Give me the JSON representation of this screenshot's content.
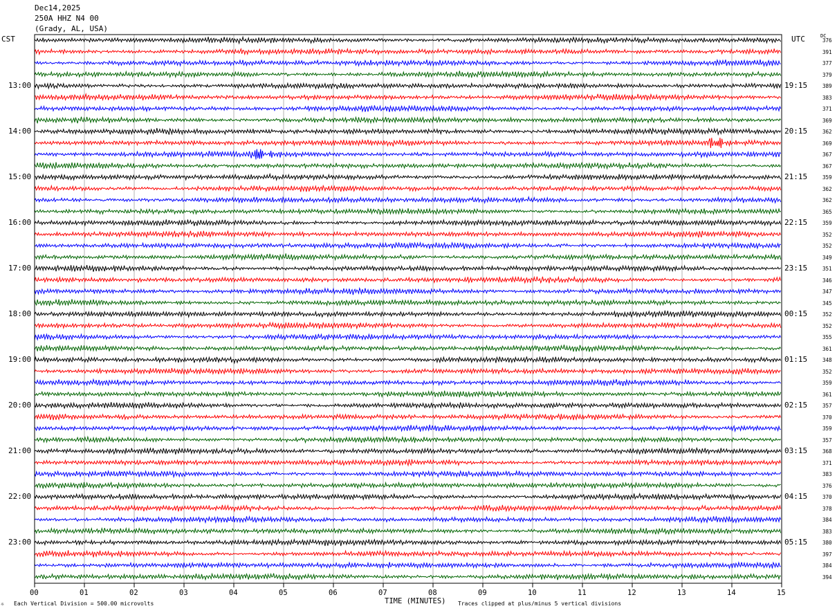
{
  "header": {
    "date": "Dec14,2025",
    "station": "250A HHZ N4 00",
    "location": "(Grady, AL, USA)"
  },
  "left_label": "CST",
  "right_label": "UTC",
  "dc_label": "DC",
  "footer": {
    "scale_note": "Each Vertical Division =  500.00 microvolts",
    "clip_note": "Traces clipped at plus/minus 5 vertical divisions",
    "corner_mark": "☼"
  },
  "chart_data": {
    "type": "line",
    "xlabel": "TIME (MINUTES)",
    "x_ticks": [
      "00",
      "01",
      "02",
      "03",
      "04",
      "05",
      "06",
      "07",
      "08",
      "09",
      "10",
      "11",
      "12",
      "13",
      "14",
      "15"
    ],
    "xlim": [
      0,
      15
    ],
    "traces_per_hour": 4,
    "cst_hours": [
      "13:00",
      "14:00",
      "15:00",
      "16:00",
      "17:00",
      "18:00",
      "19:00",
      "20:00",
      "21:00",
      "22:00",
      "23:00"
    ],
    "utc_hours": [
      "19:15",
      "20:15",
      "21:15",
      "22:15",
      "23:15",
      "00:15",
      "01:15",
      "02:15",
      "03:15",
      "04:15",
      "05:15"
    ],
    "trace_colors": [
      "#000000",
      "#ff0000",
      "#0000ff",
      "#006400"
    ],
    "dc_offsets": [
      376,
      391,
      377,
      379,
      389,
      383,
      371,
      369,
      362,
      369,
      367,
      367,
      359,
      362,
      362,
      365,
      359,
      352,
      352,
      349,
      351,
      346,
      347,
      345,
      352,
      352,
      355,
      361,
      348,
      352,
      359,
      361,
      357,
      370,
      359,
      357,
      368,
      371,
      383,
      376,
      370,
      378,
      384,
      383,
      380,
      397,
      384,
      394
    ],
    "events": [
      {
        "trace_index": 10,
        "minute": 4.5,
        "note": ""
      },
      {
        "trace_index": 9,
        "minute": 13.7,
        "note": ""
      }
    ]
  }
}
